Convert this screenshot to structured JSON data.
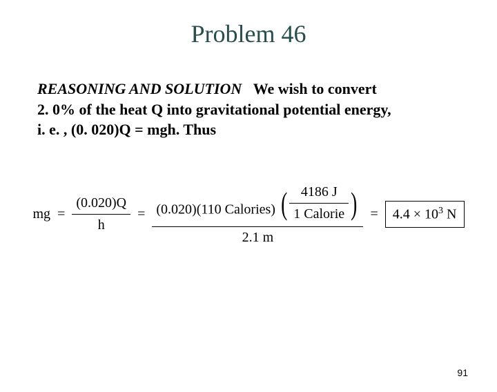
{
  "title": {
    "text": "Problem 46",
    "color": "#274d4d",
    "fontsize": 36
  },
  "paragraph": {
    "lead": "REASONING AND SOLUTION",
    "text_lines": [
      "We wish to convert",
      "2. 0% of the heat Q into gravitational potential energy,",
      "i. e. , (0. 020)Q = mgh. Thus"
    ],
    "fontsize": 22,
    "color": "#000000"
  },
  "equation": {
    "lhs": "mg",
    "frac1": {
      "num": "(0.020)Q",
      "den": "h"
    },
    "frac2": {
      "num_left": "(0.020)(110 Calories)",
      "num_paren": {
        "top": "4186 J",
        "bottom": "1 Calorie"
      },
      "den": "2.1 m"
    },
    "answer": {
      "value": "4.4 × 10",
      "exponent": "3",
      "unit": " N"
    },
    "color": "#000000",
    "fontsize": 20
  },
  "page_number": "91"
}
